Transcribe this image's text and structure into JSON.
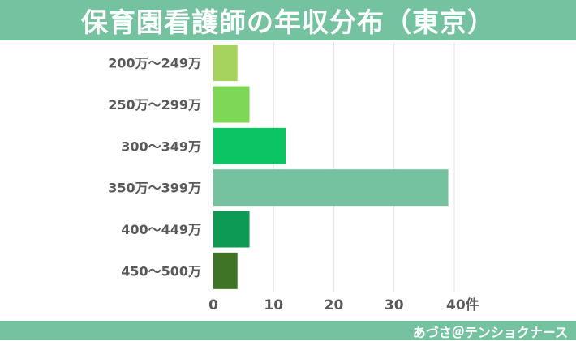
{
  "title": "保育園看護師の年収分布（東京）",
  "credit": "あづさ＠テンショクナース",
  "chart_data": {
    "type": "bar",
    "orientation": "horizontal",
    "title": "保育園看護師の年収分布（東京）",
    "categories": [
      "200万～249万",
      "250万～299万",
      "300～349万",
      "350万～399万",
      "400～449万",
      "450～500万"
    ],
    "values": [
      4,
      6,
      12,
      39,
      6,
      4
    ],
    "bar_colors": [
      "#a6d35e",
      "#7fd756",
      "#0cc464",
      "#75c2a0",
      "#0c9a55",
      "#3f7426"
    ],
    "xlim": [
      0,
      40
    ],
    "x_ticks": [
      "0",
      "10",
      "20",
      "30",
      "40件"
    ],
    "grid": true,
    "legend": "none"
  }
}
